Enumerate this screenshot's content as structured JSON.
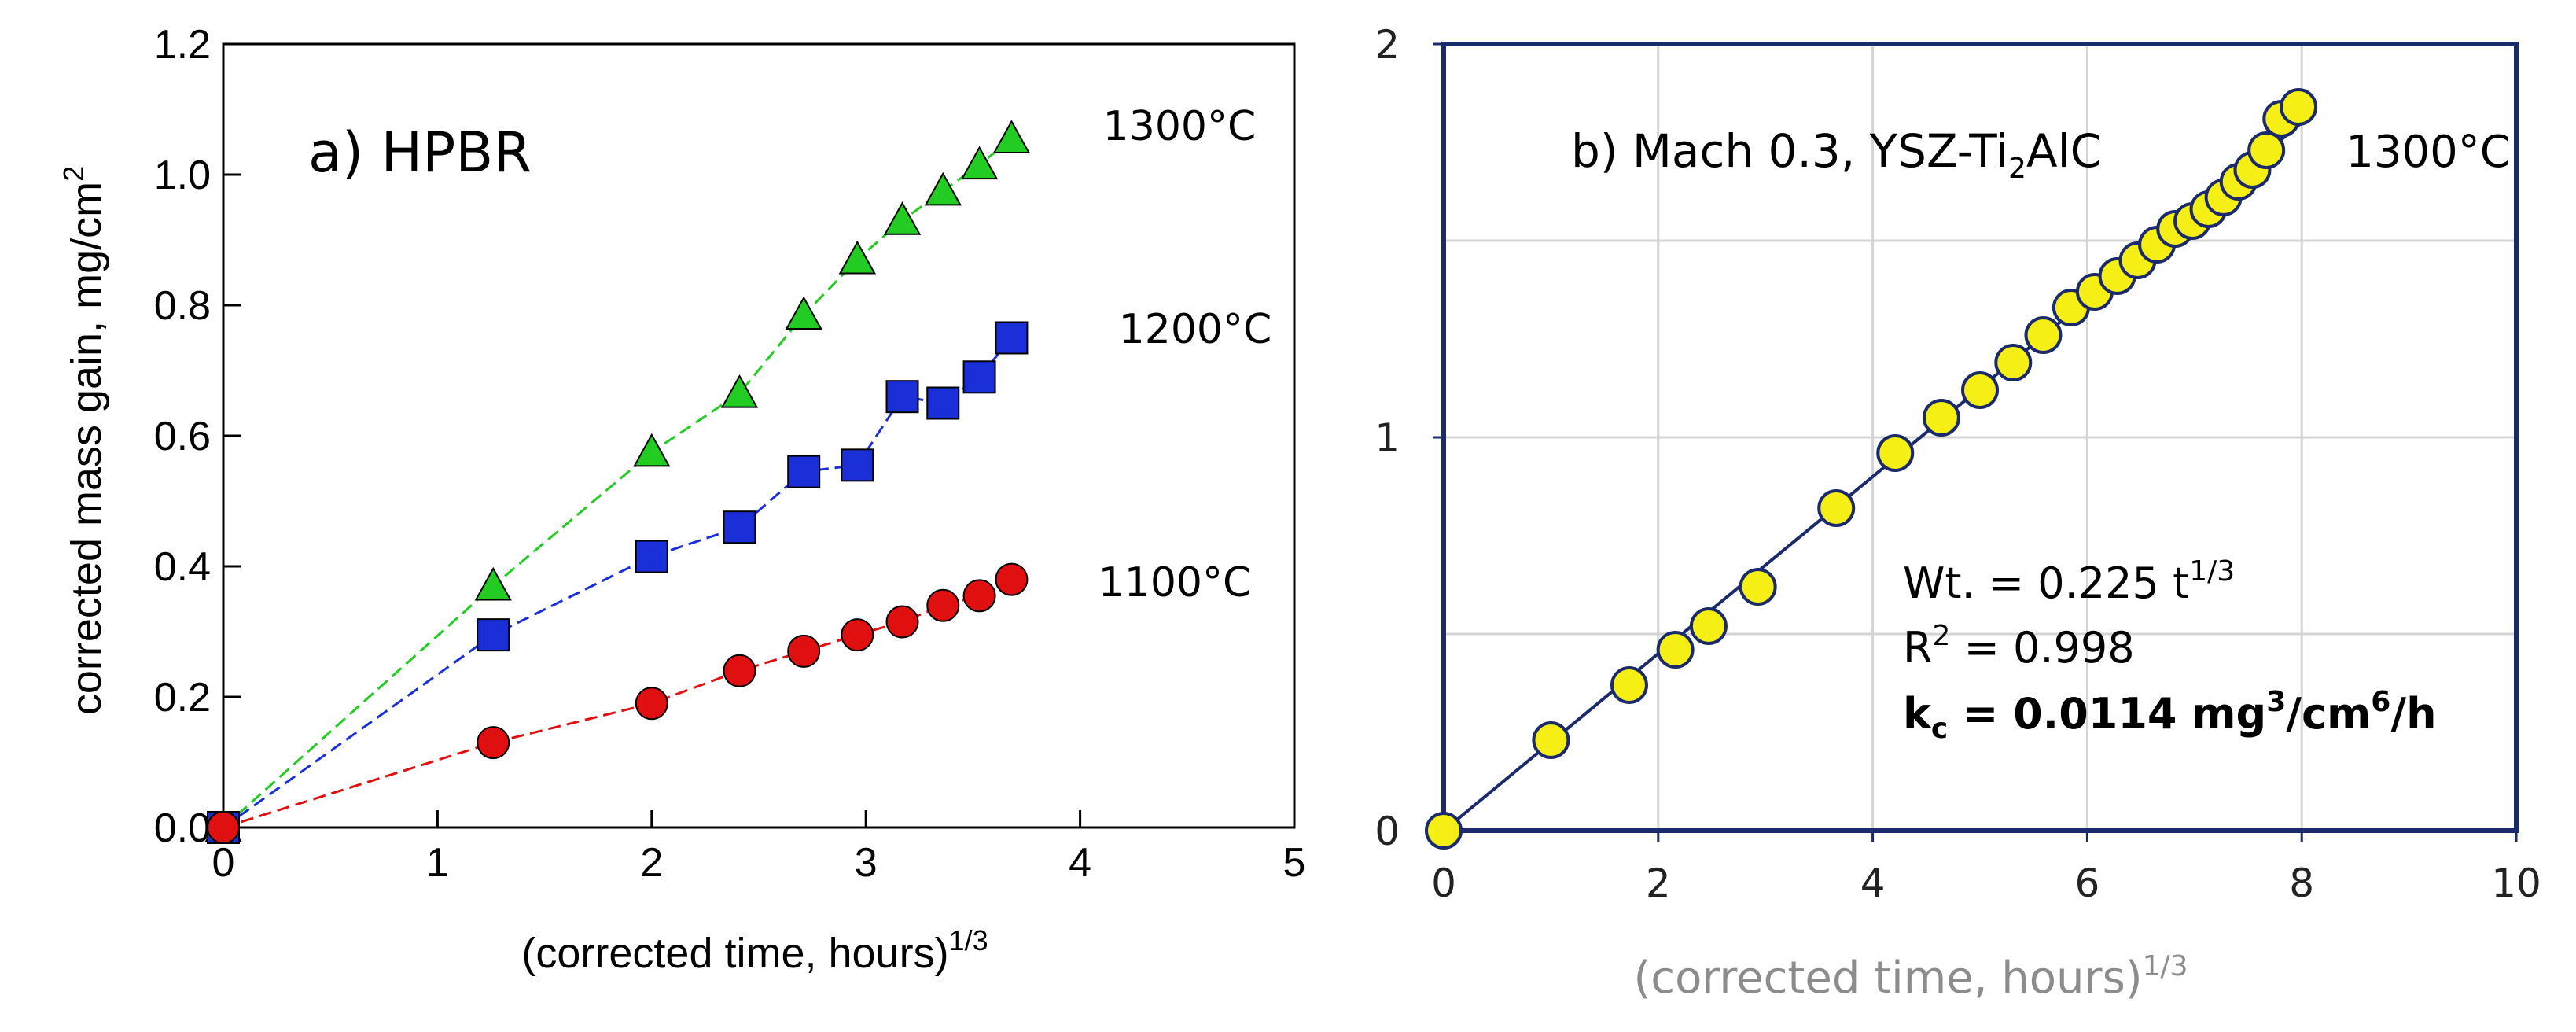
{
  "chart_data": [
    {
      "type": "scatter",
      "title": "a) HPBR",
      "xlabel": "(corrected time, hours)",
      "xlabel_sup": "1/3",
      "ylabel": "corrected mass gain, mg/cm",
      "ylabel_sup": "2",
      "xlim": [
        0,
        5
      ],
      "ylim": [
        0,
        1.2
      ],
      "xticks": [
        "0",
        "1",
        "2",
        "3",
        "4",
        "5"
      ],
      "yticks": [
        "0.0",
        "0.2",
        "0.4",
        "0.6",
        "0.8",
        "1.0",
        "1.2"
      ],
      "grid": false,
      "series": [
        {
          "name": "1300°C",
          "marker": "triangle",
          "color": "#22cc22",
          "x": [
            0,
            1.26,
            2.0,
            2.41,
            2.71,
            2.96,
            3.17,
            3.36,
            3.53,
            3.68
          ],
          "y": [
            0,
            0.37,
            0.575,
            0.665,
            0.785,
            0.87,
            0.93,
            0.975,
            1.015,
            1.055
          ]
        },
        {
          "name": "1200°C",
          "marker": "square",
          "color": "#1a2fd8",
          "x": [
            0,
            1.26,
            2.0,
            2.41,
            2.71,
            2.96,
            3.17,
            3.36,
            3.53,
            3.68
          ],
          "y": [
            0,
            0.295,
            0.415,
            0.46,
            0.545,
            0.555,
            0.66,
            0.65,
            0.69,
            0.75
          ]
        },
        {
          "name": "1100°C",
          "marker": "circle",
          "color": "#e01010",
          "x": [
            0,
            1.26,
            2.0,
            2.41,
            2.71,
            2.96,
            3.17,
            3.36,
            3.53,
            3.68
          ],
          "y": [
            0,
            0.13,
            0.19,
            0.24,
            0.27,
            0.295,
            0.315,
            0.34,
            0.355,
            0.38
          ]
        }
      ],
      "labels": [
        "1300°C",
        "1200°C",
        "1100°C"
      ]
    },
    {
      "type": "scatter",
      "title": "b) Mach 0.3, YSZ-Ti",
      "title_sub": "2",
      "title_end": "AlC",
      "xlabel": "(corrected time, hours)",
      "xlabel_sup": "1/3",
      "xlim": [
        0,
        10
      ],
      "ylim": [
        0,
        2
      ],
      "xticks": [
        "0",
        "2",
        "4",
        "6",
        "8",
        "10"
      ],
      "yticks": [
        "0",
        "1",
        "2"
      ],
      "grid": true,
      "temp_label": "1300°C",
      "annotations": {
        "fit_main": "Wt. = 0.225 t",
        "fit_sup": "1/3",
        "r2_main": "R",
        "r2_sup": "2",
        "r2_end": " = 0.998",
        "kc_k": "k",
        "kc_sub": "c",
        "kc_mid": " = 0.0114 mg",
        "kc_sup1": "3",
        "kc_mid2": "/cm",
        "kc_sup2": "6",
        "kc_end": "/h"
      },
      "fit": {
        "coef": 0.225,
        "x_range": [
          0,
          8
        ]
      },
      "points": {
        "marker": "circle",
        "color": "#f5ef16",
        "edge_color": "#1a2a6a",
        "x": [
          0,
          1.0,
          1.73,
          2.16,
          2.47,
          2.93,
          3.66,
          4.21,
          4.64,
          5.0,
          5.31,
          5.59,
          5.85,
          6.07,
          6.28,
          6.47,
          6.65,
          6.82,
          6.98,
          7.13,
          7.27,
          7.41,
          7.54,
          7.67,
          7.81,
          7.97
        ],
        "y": [
          0,
          0.23,
          0.37,
          0.46,
          0.52,
          0.62,
          0.82,
          0.96,
          1.05,
          1.12,
          1.19,
          1.26,
          1.33,
          1.37,
          1.41,
          1.45,
          1.49,
          1.53,
          1.55,
          1.58,
          1.61,
          1.65,
          1.68,
          1.73,
          1.81,
          1.84
        ]
      }
    }
  ]
}
